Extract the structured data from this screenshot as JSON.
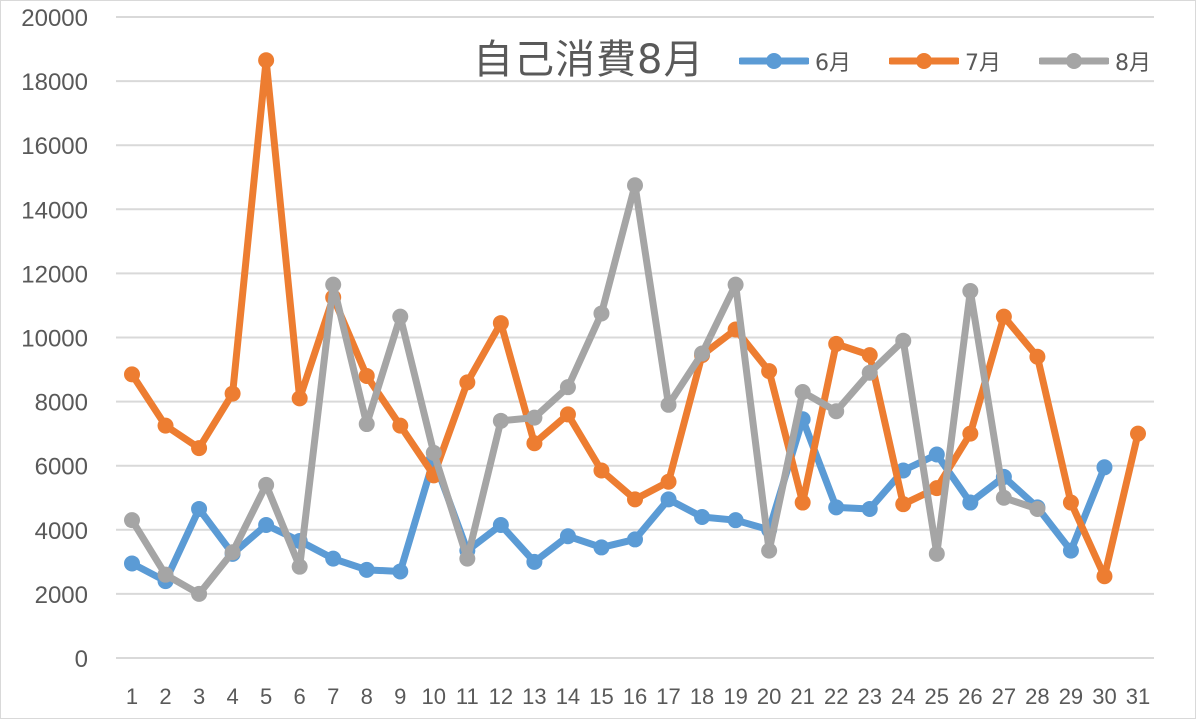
{
  "chart_data": {
    "type": "line",
    "title": "自己消費8月",
    "xlabel": "",
    "ylabel": "",
    "ylim": [
      0,
      20000
    ],
    "yticks": [
      0,
      2000,
      4000,
      6000,
      8000,
      10000,
      12000,
      14000,
      16000,
      18000,
      20000
    ],
    "grid": true,
    "legend_position": "top-right",
    "categories": [
      "1",
      "2",
      "3",
      "4",
      "5",
      "6",
      "7",
      "8",
      "9",
      "10",
      "11",
      "12",
      "13",
      "14",
      "15",
      "16",
      "17",
      "18",
      "19",
      "20",
      "21",
      "22",
      "23",
      "24",
      "25",
      "26",
      "27",
      "28",
      "29",
      "30",
      "31"
    ],
    "series": [
      {
        "name": "6月",
        "color": "#5b9bd5",
        "values": [
          2950,
          2400,
          4650,
          3250,
          4150,
          3650,
          3100,
          2750,
          2700,
          6200,
          3350,
          4150,
          3000,
          3800,
          3450,
          3700,
          4950,
          4400,
          4300,
          4000,
          7450,
          4700,
          4650,
          5850,
          6350,
          4850,
          5650,
          4700,
          3350,
          5950,
          null
        ]
      },
      {
        "name": "7月",
        "color": "#ed7d31",
        "values": [
          8850,
          7250,
          6550,
          8250,
          18650,
          8100,
          11250,
          8800,
          7250,
          5700,
          8600,
          10450,
          6700,
          7600,
          5850,
          4950,
          5500,
          9450,
          10250,
          8950,
          4850,
          9800,
          9450,
          4800,
          5300,
          7000,
          10650,
          9400,
          4850,
          2550,
          7000
        ]
      },
      {
        "name": "8月",
        "color": "#a5a5a5",
        "values": [
          4300,
          2600,
          2000,
          3300,
          5400,
          2850,
          11650,
          7300,
          10650,
          6400,
          3100,
          7400,
          7500,
          8450,
          10750,
          14750,
          7900,
          9500,
          11650,
          3350,
          8300,
          7700,
          8900,
          9900,
          3250,
          11450,
          5000,
          4650,
          null,
          null,
          null
        ]
      }
    ]
  },
  "legend": {
    "items": [
      {
        "label": "6月",
        "color": "#5b9bd5"
      },
      {
        "label": "7月",
        "color": "#ed7d31"
      },
      {
        "label": "8月",
        "color": "#a5a5a5"
      }
    ]
  }
}
